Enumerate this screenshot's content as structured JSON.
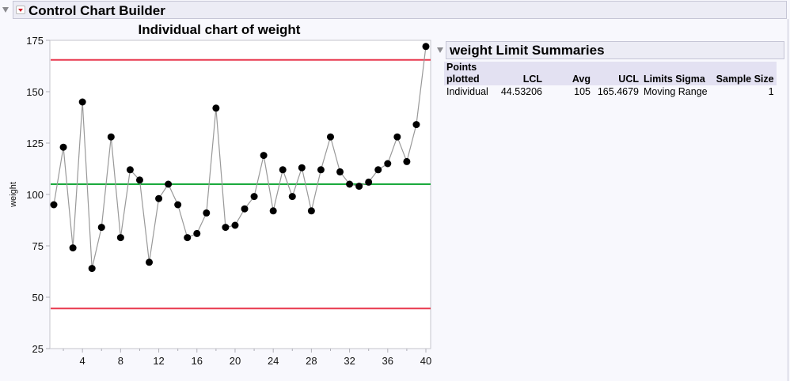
{
  "header": {
    "title": "Control Chart Builder",
    "colors": {
      "hot_button": "#d1202c",
      "bar_bg": "#ececf5"
    }
  },
  "summary": {
    "title": "weight Limit Summaries",
    "columns": [
      "Points plotted",
      "LCL",
      "Avg",
      "UCL",
      "Limits Sigma",
      "Sample Size"
    ],
    "columns_lines": [
      [
        "Points",
        "plotted"
      ],
      [
        "",
        "LCL"
      ],
      [
        "",
        "Avg"
      ],
      [
        "",
        "UCL"
      ],
      [
        "",
        "Limits Sigma"
      ],
      [
        "",
        "Sample Size"
      ]
    ],
    "rows": [
      [
        "Individual",
        "44.53206",
        "105",
        "165.4679",
        "Moving Range",
        "1"
      ]
    ]
  },
  "chart_data": {
    "type": "line",
    "title": "Individual chart of weight",
    "xlabel": "",
    "ylabel": "weight",
    "xlim": [
      0.5,
      40.5
    ],
    "ylim": [
      25,
      175
    ],
    "x_ticks": [
      4,
      8,
      12,
      16,
      20,
      24,
      28,
      32,
      36,
      40
    ],
    "y_ticks": [
      25,
      50,
      75,
      100,
      125,
      150,
      175
    ],
    "grid": false,
    "x": [
      1,
      2,
      3,
      4,
      5,
      6,
      7,
      8,
      9,
      10,
      11,
      12,
      13,
      14,
      15,
      16,
      17,
      18,
      19,
      20,
      21,
      22,
      23,
      24,
      25,
      26,
      27,
      28,
      29,
      30,
      31,
      32,
      33,
      34,
      35,
      36,
      37,
      38,
      39,
      40
    ],
    "series": [
      {
        "name": "weight",
        "values": [
          95,
          123,
          74,
          145,
          64,
          84,
          128,
          79,
          112,
          107,
          67,
          98,
          105,
          95,
          79,
          81,
          91,
          142,
          84,
          85,
          93,
          99,
          119,
          92,
          112,
          99,
          113,
          92,
          112,
          128,
          111,
          105,
          104,
          106,
          112,
          115,
          128,
          116,
          134,
          172
        ]
      }
    ],
    "limits": {
      "UCL": 165.4679,
      "Avg": 105,
      "LCL": 44.53206
    },
    "colors": {
      "limit": "#e8394e",
      "center": "#1aaa3c",
      "line": "#999999",
      "point": "#000000"
    }
  }
}
